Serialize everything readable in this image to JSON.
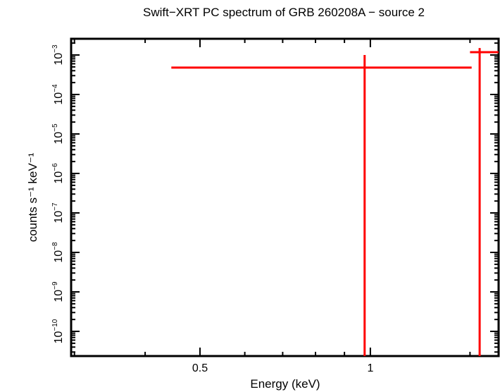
{
  "chart_data": {
    "type": "scatter",
    "title": "Swift−XRT PC spectrum of GRB 260208A − source 2",
    "xlabel": "Energy (keV)",
    "ylabel": "counts s⁻¹ keV⁻¹",
    "xscale": "log",
    "yscale": "log",
    "xlim": [
      0.296,
      1.685
    ],
    "ylim": [
      3e-11,
      0.0015
    ],
    "x_ticks": [
      {
        "value": 0.5,
        "label": "0.5"
      },
      {
        "value": 1,
        "label": "1"
      }
    ],
    "y_ticks": [
      {
        "exp": -3,
        "label": "10⁻³"
      },
      {
        "exp": -4,
        "label": "10⁻⁴"
      },
      {
        "exp": -5,
        "label": "10⁻⁵"
      },
      {
        "exp": -6,
        "label": "10⁻⁶"
      },
      {
        "exp": -7,
        "label": "10⁻⁷"
      },
      {
        "exp": -8,
        "label": "10⁻⁸"
      },
      {
        "exp": -9,
        "label": "10⁻⁹"
      },
      {
        "exp": -10,
        "label": "10⁻¹⁰"
      }
    ],
    "grid": false,
    "color": "#ff0000",
    "series": [
      {
        "name": "source 2",
        "points": [
          {
            "x": 0.977,
            "x_lo": 0.445,
            "x_hi": 1.51,
            "y": 0.00048,
            "y_lo": 3e-11,
            "y_hi": 0.001
          },
          {
            "x": 1.56,
            "x_lo": 1.5,
            "x_hi": 1.685,
            "y": 0.00118,
            "y_lo": 3e-11,
            "y_hi": 0.0015
          }
        ]
      }
    ]
  }
}
